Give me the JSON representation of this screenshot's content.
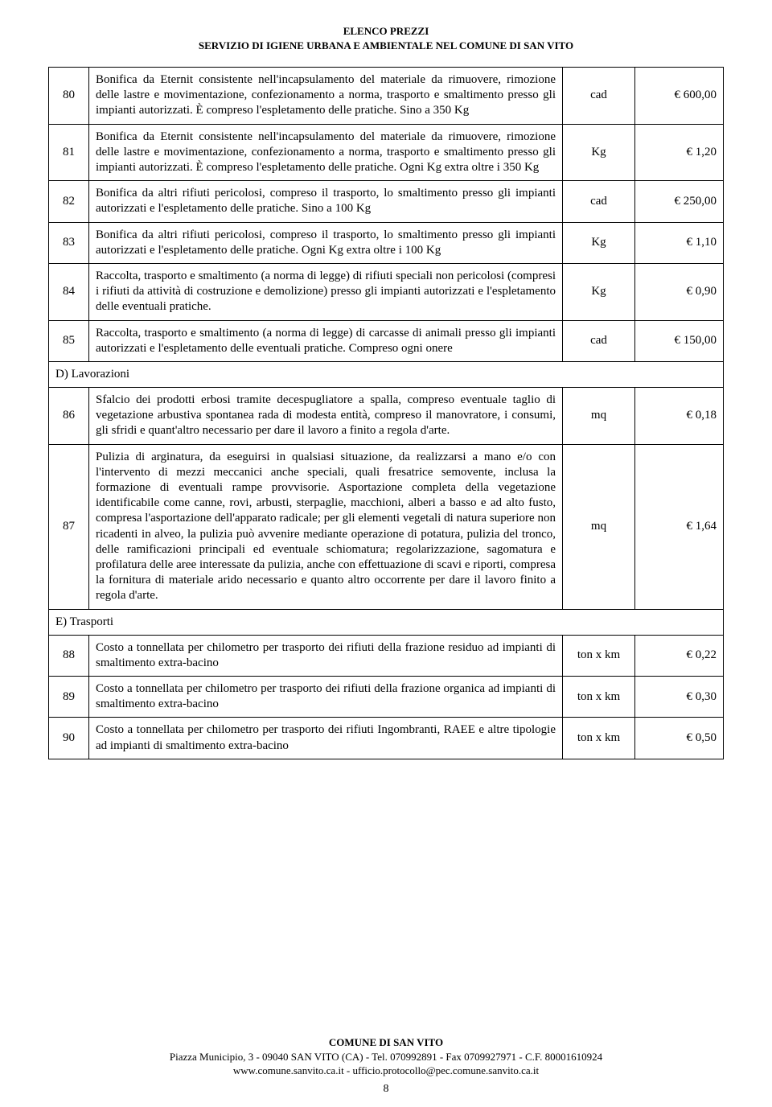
{
  "header": {
    "line1": "ELENCO PREZZI",
    "line2": "SERVIZIO DI IGIENE URBANA E AMBIENTALE NEL COMUNE DI SAN VITO"
  },
  "rows": [
    {
      "num": "80",
      "desc": "Bonifica da Eternit consistente nell'incapsulamento del materiale da rimuovere, rimozione delle lastre e movimentazione, confezionamento a norma, trasporto e smaltimento presso gli impianti autorizzati. È compreso l'espletamento delle pratiche. Sino a 350 Kg",
      "unit": "cad",
      "price": "€ 600,00"
    },
    {
      "num": "81",
      "desc": "Bonifica da Eternit consistente nell'incapsulamento del materiale da rimuovere, rimozione delle lastre e movimentazione, confezionamento a norma, trasporto e smaltimento presso gli impianti autorizzati. È compreso l'espletamento delle pratiche. Ogni Kg extra oltre i 350 Kg",
      "unit": "Kg",
      "price": "€ 1,20"
    },
    {
      "num": "82",
      "desc": "Bonifica da altri rifiuti pericolosi, compreso il trasporto, lo smaltimento presso gli impianti autorizzati e l'espletamento delle pratiche. Sino a 100 Kg",
      "unit": "cad",
      "price": "€ 250,00"
    },
    {
      "num": "83",
      "desc": "Bonifica da altri rifiuti pericolosi, compreso il trasporto, lo smaltimento presso gli impianti autorizzati e l'espletamento delle pratiche. Ogni Kg extra oltre i 100 Kg",
      "unit": "Kg",
      "price": "€ 1,10"
    },
    {
      "num": "84",
      "desc": "Raccolta, trasporto e smaltimento (a norma di legge) di rifiuti speciali non pericolosi (compresi i rifiuti da attività di costruzione e demolizione) presso gli impianti autorizzati e l'espletamento delle eventuali pratiche.",
      "unit": "Kg",
      "price": "€ 0,90"
    },
    {
      "num": "85",
      "desc": "Raccolta, trasporto e smaltimento (a norma di legge) di carcasse di animali presso gli impianti autorizzati e l'espletamento delle eventuali pratiche. Compreso ogni onere",
      "unit": "cad",
      "price": "€ 150,00"
    },
    {
      "section": "D) Lavorazioni"
    },
    {
      "num": "86",
      "desc": "Sfalcio dei prodotti erbosi tramite decespugliatore a spalla, compreso eventuale taglio di vegetazione arbustiva spontanea rada di modesta entità, compreso il manovratore, i consumi, gli sfridi e quant'altro necessario per dare il lavoro a finito a regola d'arte.",
      "unit": "mq",
      "price": "€ 0,18"
    },
    {
      "num": "87",
      "desc": "Pulizia di arginatura, da eseguirsi in qualsiasi situazione, da realizzarsi a mano e/o con l'intervento di mezzi meccanici anche speciali, quali fresatrice semovente, inclusa la formazione di eventuali rampe provvisorie. Asportazione completa della vegetazione identificabile come canne, rovi, arbusti, sterpaglie, macchioni, alberi a basso e ad alto fusto, compresa l'asportazione dell'apparato radicale; per gli elementi vegetali di natura superiore non ricadenti in alveo, la pulizia può avvenire mediante operazione di potatura, pulizia del tronco, delle ramificazioni principali ed eventuale schiomatura; regolarizzazione, sagomatura e profilatura delle aree interessate da pulizia, anche con effettuazione di scavi e riporti, compresa la fornitura di materiale arido necessario e quanto altro occorrente per dare il lavoro finito a regola d'arte.",
      "unit": "mq",
      "price": "€ 1,64"
    },
    {
      "section": "E) Trasporti"
    },
    {
      "num": "88",
      "desc": "Costo a tonnellata per chilometro per trasporto dei rifiuti della frazione residuo ad impianti di smaltimento extra-bacino",
      "unit": "ton x km",
      "price": "€ 0,22"
    },
    {
      "num": "89",
      "desc": "Costo a tonnellata per chilometro per trasporto dei rifiuti della frazione organica ad impianti di smaltimento extra-bacino",
      "unit": "ton x km",
      "price": "€ 0,30"
    },
    {
      "num": "90",
      "desc": "Costo a tonnellata per chilometro per trasporto dei rifiuti Ingombranti, RAEE e altre tipologie ad impianti di smaltimento extra-bacino",
      "unit": "ton x km",
      "price": "€ 0,50"
    }
  ],
  "footer": {
    "org": "COMUNE DI SAN VITO",
    "addr": "Piazza Municipio, 3 - 09040 SAN VITO (CA) - Tel. 070992891 - Fax 0709927971 - C.F. 80001610924",
    "web": "www.comune.sanvito.ca.it - ufficio.protocollo@pec.comune.sanvito.ca.it",
    "page": "8"
  }
}
